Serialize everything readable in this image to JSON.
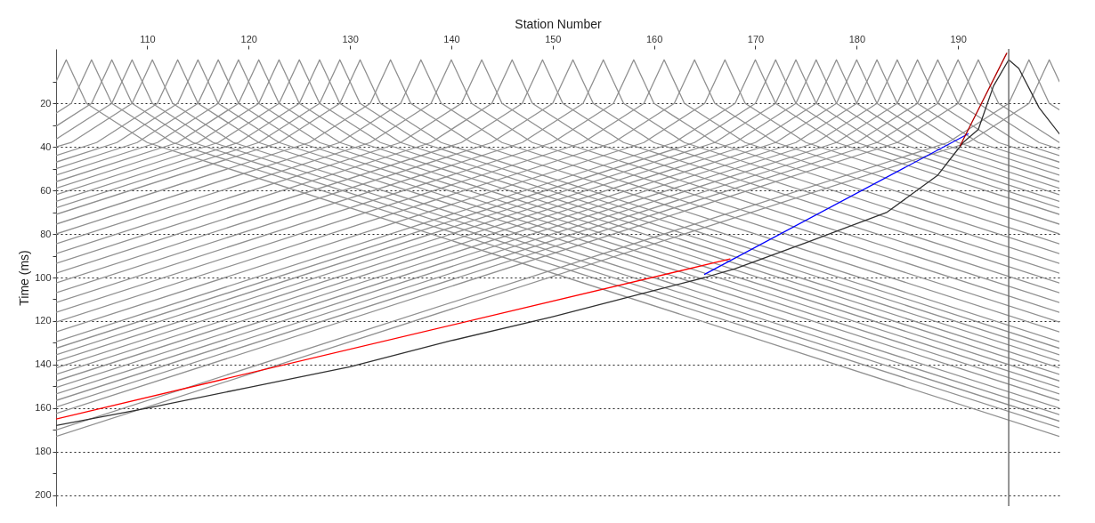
{
  "chart_data": {
    "type": "line",
    "xlabel": "Station Number",
    "ylabel": "Time (ms)",
    "xlim": [
      101,
      200
    ],
    "xticks": [
      110,
      120,
      130,
      140,
      150,
      160,
      170,
      180,
      190
    ],
    "ylim": [
      205,
      -5
    ],
    "yticks": [
      {
        "value": 10,
        "label": null
      },
      20,
      {
        "value": 30,
        "label": null
      },
      40,
      {
        "value": 50,
        "label": null
      },
      60,
      {
        "value": 70,
        "label": null
      },
      80,
      {
        "value": 90,
        "label": null
      },
      100,
      {
        "value": 110,
        "label": null
      },
      120,
      {
        "value": 130,
        "label": null
      },
      140,
      {
        "value": 150,
        "label": null
      },
      160,
      {
        "value": 170,
        "label": null
      },
      180,
      {
        "value": 190,
        "label": null
      },
      200
    ],
    "grid": "y",
    "legend": false,
    "marker": "none",
    "line_style": "solid",
    "ref_lines": [
      {
        "axis": "x",
        "value": 195,
        "color": "#707070"
      }
    ],
    "series": [
      {
        "color": "#909090",
        "x": [
          101,
          102,
          104,
          110,
          200
        ],
        "values": [
          10,
          0,
          20,
          38,
          173
        ]
      },
      {
        "color": "#909090",
        "x": [
          101,
          102.5,
          104.5,
          106.5,
          112.5,
          200
        ],
        "values": [
          24.5,
          20,
          0,
          20,
          38,
          169
        ]
      },
      {
        "color": "#909090",
        "x": [
          101,
          104.5,
          106.5,
          108.5,
          114.5,
          200
        ],
        "values": [
          30.5,
          20,
          0,
          20,
          38,
          166
        ]
      },
      {
        "color": "#909090",
        "x": [
          101,
          106.5,
          108.5,
          110.5,
          116.5,
          200
        ],
        "values": [
          36.5,
          20,
          0,
          20,
          38,
          163
        ]
      },
      {
        "color": "#909090",
        "x": [
          101,
          102.5,
          108.5,
          110.5,
          112.5,
          118.5,
          200
        ],
        "values": [
          40,
          38,
          20,
          0,
          20,
          38,
          160
        ]
      },
      {
        "color": "#909090",
        "x": [
          101,
          105,
          111,
          113,
          115,
          121,
          200
        ],
        "values": [
          44,
          38,
          20,
          0,
          20,
          38,
          156.5
        ]
      },
      {
        "color": "#909090",
        "x": [
          101,
          107,
          113,
          115,
          117,
          123,
          200
        ],
        "values": [
          47,
          38,
          20,
          0,
          20,
          38,
          153.5
        ]
      },
      {
        "color": "#909090",
        "x": [
          101,
          109,
          115,
          117,
          119,
          125,
          200
        ],
        "values": [
          50,
          38,
          20,
          0,
          20,
          38,
          150.5
        ]
      },
      {
        "color": "#909090",
        "x": [
          101,
          111,
          117,
          119,
          121,
          127,
          200
        ],
        "values": [
          53,
          38,
          20,
          0,
          20,
          38,
          147.5
        ]
      },
      {
        "color": "#909090",
        "x": [
          101,
          113,
          119,
          121,
          123,
          129,
          200
        ],
        "values": [
          56,
          38,
          20,
          0,
          20,
          38,
          144.5
        ]
      },
      {
        "color": "#909090",
        "x": [
          101,
          115,
          121,
          123,
          125,
          131,
          200
        ],
        "values": [
          59,
          38,
          20,
          0,
          20,
          38,
          141.5
        ]
      },
      {
        "color": "#909090",
        "x": [
          101,
          117,
          123,
          125,
          127,
          133,
          200
        ],
        "values": [
          62,
          38,
          20,
          0,
          20,
          38,
          138.5
        ]
      },
      {
        "color": "#909090",
        "x": [
          101,
          119,
          125,
          127,
          129,
          135,
          200
        ],
        "values": [
          65,
          38,
          20,
          0,
          20,
          38,
          135.5
        ]
      },
      {
        "color": "#909090",
        "x": [
          101,
          121,
          127,
          129,
          131,
          137,
          200
        ],
        "values": [
          68,
          38,
          20,
          0,
          20,
          38,
          132.5
        ]
      },
      {
        "color": "#909090",
        "x": [
          101,
          123,
          129,
          131,
          133,
          139,
          200
        ],
        "values": [
          71,
          38,
          20,
          0,
          20,
          38,
          129.5
        ]
      },
      {
        "color": "#909090",
        "x": [
          101,
          126,
          132,
          134,
          136,
          142,
          200
        ],
        "values": [
          75.5,
          38,
          20,
          0,
          20,
          38,
          125
        ]
      },
      {
        "color": "#909090",
        "x": [
          101,
          129,
          135,
          137,
          139,
          145,
          200
        ],
        "values": [
          80,
          38,
          20,
          0,
          20,
          38,
          120.5
        ]
      },
      {
        "color": "#909090",
        "x": [
          101,
          132,
          138,
          140,
          142,
          148,
          200
        ],
        "values": [
          84.5,
          38,
          20,
          0,
          20,
          38,
          116
        ]
      },
      {
        "color": "#909090",
        "x": [
          101,
          135,
          141,
          143,
          145,
          151,
          200
        ],
        "values": [
          89,
          38,
          20,
          0,
          20,
          38,
          111.5
        ]
      },
      {
        "color": "#909090",
        "x": [
          101,
          138,
          144,
          146,
          148,
          154,
          200
        ],
        "values": [
          93.5,
          38,
          20,
          0,
          20,
          38,
          107
        ]
      },
      {
        "color": "#909090",
        "x": [
          101,
          141,
          147,
          149,
          151,
          157,
          200
        ],
        "values": [
          98,
          38,
          20,
          0,
          20,
          38,
          102.5
        ]
      },
      {
        "color": "#909090",
        "x": [
          101,
          144,
          150,
          152,
          154,
          160,
          200
        ],
        "values": [
          102.5,
          38,
          20,
          0,
          20,
          38,
          98
        ]
      },
      {
        "color": "#909090",
        "x": [
          101,
          147,
          153,
          155,
          157,
          163,
          200
        ],
        "values": [
          107,
          38,
          20,
          0,
          20,
          38,
          93.5
        ]
      },
      {
        "color": "#909090",
        "x": [
          101,
          150,
          156,
          158,
          160,
          166,
          200
        ],
        "values": [
          111.5,
          38,
          20,
          0,
          20,
          38,
          89
        ]
      },
      {
        "color": "#909090",
        "x": [
          101,
          153,
          159,
          161,
          163,
          169,
          200
        ],
        "values": [
          116,
          38,
          20,
          0,
          20,
          38,
          84.5
        ]
      },
      {
        "color": "#909090",
        "x": [
          101,
          156,
          162,
          164,
          166,
          172,
          200
        ],
        "values": [
          120.5,
          38,
          20,
          0,
          20,
          38,
          80
        ]
      },
      {
        "color": "#909090",
        "x": [
          101,
          159,
          165,
          167,
          169,
          175,
          200
        ],
        "values": [
          125,
          38,
          20,
          0,
          20,
          38,
          75.5
        ]
      },
      {
        "color": "#909090",
        "x": [
          101,
          162,
          168,
          170,
          172,
          178,
          200
        ],
        "values": [
          129.5,
          38,
          20,
          0,
          20,
          38,
          71
        ]
      },
      {
        "color": "#909090",
        "x": [
          101,
          164,
          170,
          172,
          174,
          180,
          200
        ],
        "values": [
          132.5,
          38,
          20,
          0,
          20,
          38,
          68
        ]
      },
      {
        "color": "#909090",
        "x": [
          101,
          166,
          172,
          174,
          176,
          182,
          200
        ],
        "values": [
          135.5,
          38,
          20,
          0,
          20,
          38,
          65
        ]
      },
      {
        "color": "#909090",
        "x": [
          101,
          168,
          174,
          176,
          178,
          184,
          200
        ],
        "values": [
          138.5,
          38,
          20,
          0,
          20,
          38,
          62
        ]
      },
      {
        "color": "#909090",
        "x": [
          101,
          170,
          176,
          178,
          180,
          186,
          200
        ],
        "values": [
          141.5,
          38,
          20,
          0,
          20,
          38,
          59
        ]
      },
      {
        "color": "#909090",
        "x": [
          101,
          172,
          178,
          180,
          182,
          188,
          200
        ],
        "values": [
          144.5,
          38,
          20,
          0,
          20,
          38,
          56
        ]
      },
      {
        "color": "#909090",
        "x": [
          101,
          174,
          180,
          182,
          184,
          190,
          200
        ],
        "values": [
          147.5,
          38,
          20,
          0,
          20,
          38,
          53
        ]
      },
      {
        "color": "#909090",
        "x": [
          101,
          176,
          182,
          184,
          186,
          192,
          200
        ],
        "values": [
          150.5,
          38,
          20,
          0,
          20,
          38,
          50
        ]
      },
      {
        "color": "#909090",
        "x": [
          101,
          178,
          184,
          186,
          188,
          194,
          200
        ],
        "values": [
          153.5,
          38,
          20,
          0,
          20,
          38,
          47
        ]
      },
      {
        "color": "#909090",
        "x": [
          101,
          180,
          186,
          188,
          190,
          196,
          200
        ],
        "values": [
          156.5,
          38,
          20,
          0,
          20,
          38,
          44
        ]
      },
      {
        "color": "#909090",
        "x": [
          101,
          182,
          188,
          190,
          192,
          198,
          200
        ],
        "values": [
          159.5,
          38,
          20,
          0,
          20,
          38,
          41
        ]
      },
      {
        "color": "#909090",
        "x": [
          101,
          184,
          190,
          192,
          194,
          200
        ],
        "values": [
          162.5,
          38,
          20,
          0,
          20,
          38
        ]
      },
      {
        "color": "#909090",
        "x": [
          101,
          189,
          195,
          197,
          199,
          200
        ],
        "values": [
          170,
          38,
          20,
          0,
          20,
          23
        ]
      },
      {
        "color": "#909090",
        "x": [
          101,
          191,
          197,
          199,
          200
        ],
        "values": [
          173,
          38,
          20,
          0,
          10
        ]
      },
      {
        "color": "#303030",
        "x": [
          101,
          110,
          120,
          130,
          140,
          150,
          160,
          165,
          168,
          175,
          183,
          188,
          190.5,
          192,
          193.5,
          195,
          196,
          198,
          200
        ],
        "values": [
          168,
          160,
          150.5,
          141,
          129,
          118,
          106,
          100,
          96,
          84,
          70,
          53,
          38,
          32,
          12,
          0,
          4,
          22,
          34
        ]
      },
      {
        "color": "#ff0000",
        "x": [
          101,
          167.5
        ],
        "values": [
          165,
          91.5
        ]
      },
      {
        "color": "#0000ff",
        "x": [
          165,
          191
        ],
        "values": [
          98.5,
          34
        ]
      },
      {
        "color": "#b00000",
        "x": [
          190.2,
          194.8
        ],
        "values": [
          39.5,
          -3
        ]
      }
    ]
  }
}
